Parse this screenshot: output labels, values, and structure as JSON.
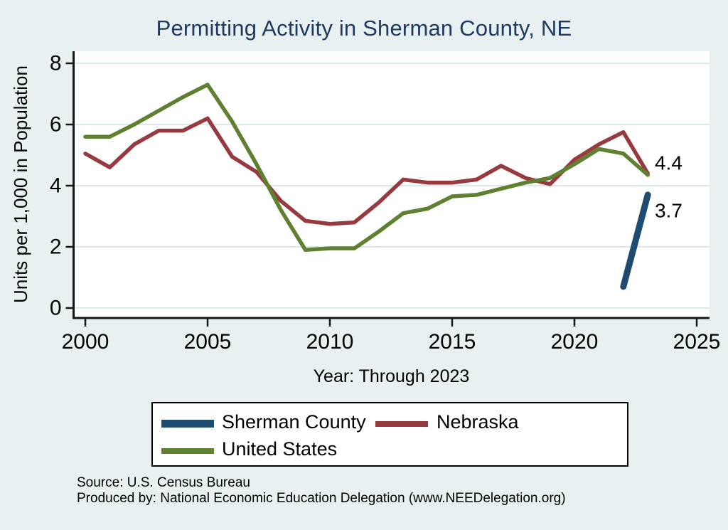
{
  "title": "Permitting Activity in Sherman County, NE",
  "chart_data": {
    "type": "line",
    "title": "Permitting Activity in Sherman County, NE",
    "xlabel": "Year: Through 2023",
    "ylabel": "Units per 1,000 in Population",
    "xlim": [
      1999.5,
      2025.5
    ],
    "ylim": [
      0,
      8
    ],
    "xticks": [
      2000,
      2005,
      2010,
      2015,
      2020,
      2025
    ],
    "yticks": [
      0,
      2,
      4,
      6,
      8
    ],
    "grid": "horizontal",
    "legend_position": "bottom",
    "x": [
      2000,
      2001,
      2002,
      2003,
      2004,
      2005,
      2006,
      2007,
      2008,
      2009,
      2010,
      2011,
      2012,
      2013,
      2014,
      2015,
      2016,
      2017,
      2018,
      2019,
      2020,
      2021,
      2022,
      2023
    ],
    "series": [
      {
        "name": "Sherman County",
        "color": "#1e4b70",
        "linewidth": 9,
        "x": [
          2022,
          2023
        ],
        "values": [
          0.7,
          3.7
        ]
      },
      {
        "name": "Nebraska",
        "color": "#973a3f",
        "linewidth": 5.5,
        "values": [
          5.05,
          4.6,
          5.35,
          5.8,
          5.8,
          6.2,
          4.95,
          4.45,
          3.5,
          2.85,
          2.75,
          2.8,
          3.45,
          4.2,
          4.1,
          4.1,
          4.2,
          4.65,
          4.25,
          4.05,
          4.85,
          5.35,
          5.75,
          4.4
        ]
      },
      {
        "name": "United States",
        "color": "#5e8030",
        "linewidth": 5.5,
        "values": [
          5.6,
          5.6,
          6.0,
          6.45,
          6.9,
          7.3,
          6.1,
          4.7,
          3.2,
          1.9,
          1.95,
          1.95,
          2.5,
          3.1,
          3.25,
          3.65,
          3.7,
          3.9,
          4.1,
          4.25,
          4.7,
          5.2,
          5.05,
          4.35
        ]
      }
    ],
    "annotations": [
      {
        "text": "4.4",
        "x": 2023.85,
        "y": 4.74
      },
      {
        "text": "3.7",
        "x": 2023.85,
        "y": 3.19
      }
    ]
  },
  "legend": {
    "items": [
      {
        "label": "Sherman County",
        "color": "#1e4b70"
      },
      {
        "label": "Nebraska",
        "color": "#973a3f"
      },
      {
        "label": "United States",
        "color": "#5e8030"
      }
    ]
  },
  "footer": {
    "source": "Source: U.S. Census Bureau",
    "produced_by": "Produced by: National Economic Education Delegation (www.NEEDelegation.org)"
  },
  "colors": {
    "background": "#e9f0f2",
    "plot_background": "#ffffff",
    "title": "#1e3a60",
    "grid": "#dce8ec",
    "axis": "#141617"
  }
}
